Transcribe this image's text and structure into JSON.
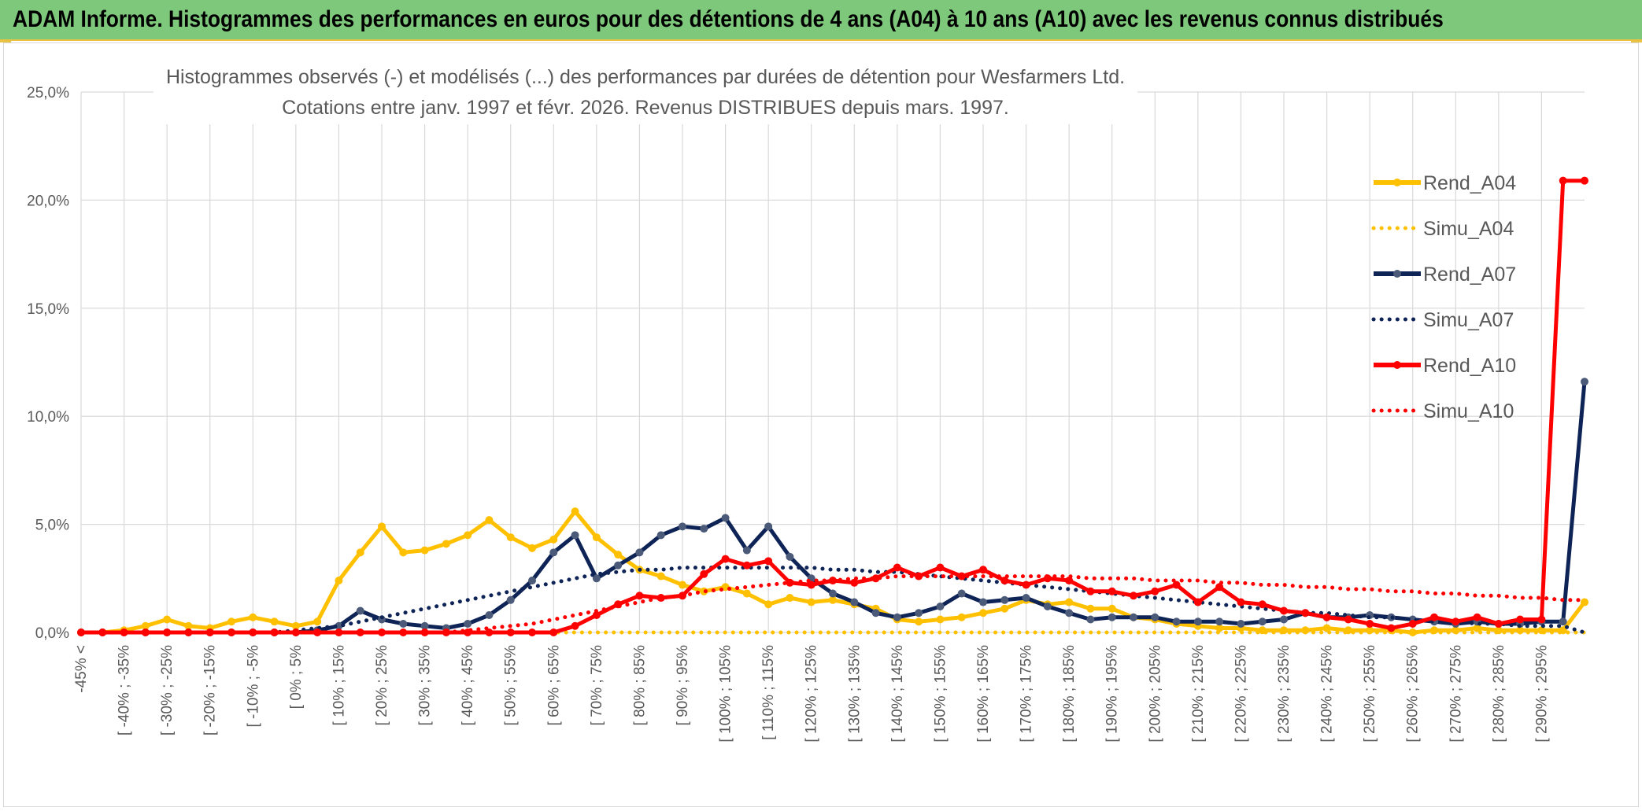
{
  "header": {
    "title": "ADAM Informe. Histogrammes des performances en euros pour des détentions de 4 ans (A04) à 10 ans (A10) avec les revenus connus distribués"
  },
  "colors": {
    "banner": "#7ec87b",
    "accent": "#e8c240",
    "Rend_A04": "#ffc000",
    "Simu_A04": "#ffc000",
    "Rend_A07": "#0e2356",
    "Simu_A07": "#0e2356",
    "Rend_A10": "#ff0000",
    "Simu_A10": "#ff0000"
  },
  "chart_data": {
    "type": "line",
    "title": "Histogrammes observés (-) et modélisés (...) des performances par durées de détention pour Wesfarmers Ltd.",
    "subtitle": "Cotations entre janv. 1997 et févr. 2026. Revenus DISTRIBUES depuis mars. 1997.",
    "xlabel": "",
    "ylabel": "",
    "ylim": [
      0,
      25
    ],
    "y_ticks": [
      "0,0%",
      "5,0%",
      "10,0%",
      "15,0%",
      "20,0%",
      "25,0%"
    ],
    "grid": true,
    "legend_position": "right",
    "categories": [
      "-45% <",
      "[ -45% ; -40%",
      "[ -40% ; -35%",
      "[ -35% ; -30%",
      "[ -30% ; -25%",
      "[ -25% ; -20%",
      "[ -20% ; -15%",
      "[ -15% ; -10%",
      "[ -10% ; -5%",
      "[ -5% ; 0%",
      "[ 0% ; 5%",
      "[ 5% ; 10%",
      "[ 10% ; 15%",
      "[ 15% ; 20%",
      "[ 20% ; 25%",
      "[ 25% ; 30%",
      "[ 30% ; 35%",
      "[ 35% ; 40%",
      "[ 40% ; 45%",
      "[ 45% ; 50%",
      "[ 50% ; 55%",
      "[ 55% ; 60%",
      "[ 60% ; 65%",
      "[ 65% ; 70%",
      "[ 70% ; 75%",
      "[ 75% ; 80%",
      "[ 80% ; 85%",
      "[ 85% ; 90%",
      "[ 90% ; 95%",
      "[ 95% ; 100%",
      "[ 100% ; 105%",
      "[ 105% ; 110%",
      "[ 110% ; 115%",
      "[ 115% ; 120%",
      "[ 120% ; 125%",
      "[ 125% ; 130%",
      "[ 130% ; 135%",
      "[ 135% ; 140%",
      "[ 140% ; 145%",
      "[ 145% ; 150%",
      "[ 150% ; 155%",
      "[ 155% ; 160%",
      "[ 160% ; 165%",
      "[ 165% ; 170%",
      "[ 170% ; 175%",
      "[ 175% ; 180%",
      "[ 180% ; 185%",
      "[ 185% ; 190%",
      "[ 190% ; 195%",
      "[ 195% ; 200%",
      "[ 200% ; 205%",
      "[ 205% ; 210%",
      "[ 210% ; 215%",
      "[ 215% ; 220%",
      "[ 220% ; 225%",
      "[ 225% ; 230%",
      "[ 230% ; 235%",
      "[ 235% ; 240%",
      "[ 240% ; 245%",
      "[ 245% ; 250%",
      "[ 250% ; 255%",
      "[ 255% ; 260%",
      "[ 260% ; 265%",
      "[ 265% ; 270%",
      "[ 270% ; 275%",
      "[ 275% ; 280%",
      "[ 280% ; 285%",
      "[ 285% ; 290%",
      "[ 290% ; 295%",
      "[ 295% ; 300%",
      "> 300%"
    ],
    "x_ticks_shown": [
      "-45% <",
      "[ -40% ; -35%",
      "[ -30% ; -25%",
      "[ -20% ; -15%",
      "[ -10% ; -5%",
      "[ 0% ; 5%",
      "[ 10% ; 15%",
      "[ 20% ; 25%",
      "[ 30% ; 35%",
      "[ 40% ; 45%",
      "[ 50% ; 55%",
      "[ 60% ; 65%",
      "[ 70% ; 75%",
      "[ 80% ; 85%",
      "[ 90% ; 95%",
      "[ 100% ; 105%",
      "[ 110% ; 115%",
      "[ 120% ; 125%",
      "[ 130% ; 135%",
      "[ 140% ; 145%",
      "[ 150% ; 155%",
      "[ 160% ; 165%",
      "[ 170% ; 175%",
      "[ 180% ; 185%",
      "[ 190% ; 195%",
      "[ 200% ; 205%",
      "[ 210% ; 215%",
      "[ 220% ; 225%",
      "[ 230% ; 235%",
      "[ 240% ; 245%",
      "[ 250% ; 255%",
      "[ 260% ; 265%",
      "[ 270% ; 275%",
      "[ 280% ; 285%",
      "[ 290% ; 295%"
    ],
    "series": [
      {
        "name": "Rend_A04",
        "style": "solid",
        "markers": true,
        "values": [
          0,
          0,
          0.1,
          0.3,
          0.6,
          0.3,
          0.2,
          0.5,
          0.7,
          0.5,
          0.3,
          0.5,
          2.4,
          3.7,
          4.9,
          3.7,
          3.8,
          4.1,
          4.5,
          5.2,
          4.4,
          3.9,
          4.3,
          5.6,
          4.4,
          3.6,
          2.9,
          2.6,
          2.2,
          1.9,
          2.1,
          1.8,
          1.3,
          1.6,
          1.4,
          1.5,
          1.3,
          1.1,
          0.6,
          0.5,
          0.6,
          0.7,
          0.9,
          1.1,
          1.5,
          1.3,
          1.4,
          1.1,
          1.1,
          0.7,
          0.6,
          0.4,
          0.3,
          0.2,
          0.2,
          0.1,
          0.1,
          0.1,
          0.2,
          0.1,
          0.1,
          0.1,
          0,
          0.1,
          0.1,
          0.2,
          0.1,
          0.1,
          0.1,
          0.1,
          1.4
        ]
      },
      {
        "name": "Simu_A04",
        "style": "dotted",
        "markers": false,
        "values": [
          0,
          0,
          0,
          0,
          0,
          0,
          0,
          0,
          0,
          0,
          0,
          0,
          0,
          0,
          0,
          0,
          0,
          0,
          0,
          0,
          0,
          0,
          0,
          0,
          0,
          0,
          0,
          0,
          0,
          0,
          0,
          0,
          0,
          0,
          0,
          0,
          0,
          0,
          0,
          0,
          0,
          0,
          0,
          0,
          0,
          0,
          0,
          0,
          0,
          0,
          0,
          0,
          0,
          0,
          0,
          0,
          0,
          0,
          0,
          0,
          0,
          0,
          0,
          0,
          0,
          0,
          0,
          0,
          0,
          0,
          0
        ]
      },
      {
        "name": "Rend_A07",
        "style": "solid",
        "markers": true,
        "values": [
          0,
          0,
          0,
          0,
          0,
          0,
          0,
          0,
          0,
          0,
          0,
          0.1,
          0.3,
          1.0,
          0.6,
          0.4,
          0.3,
          0.2,
          0.4,
          0.8,
          1.5,
          2.4,
          3.7,
          4.5,
          2.5,
          3.1,
          3.7,
          4.5,
          4.9,
          4.8,
          5.3,
          3.8,
          4.9,
          3.5,
          2.5,
          1.8,
          1.4,
          0.9,
          0.7,
          0.9,
          1.2,
          1.8,
          1.4,
          1.5,
          1.6,
          1.2,
          0.9,
          0.6,
          0.7,
          0.7,
          0.7,
          0.5,
          0.5,
          0.5,
          0.4,
          0.5,
          0.6,
          0.9,
          0.7,
          0.7,
          0.8,
          0.7,
          0.6,
          0.5,
          0.4,
          0.5,
          0.4,
          0.4,
          0.5,
          0.5,
          11.6
        ]
      },
      {
        "name": "Simu_A07",
        "style": "dotted",
        "markers": false,
        "values": [
          0,
          0,
          0,
          0,
          0,
          0,
          0,
          0,
          0,
          0,
          0.1,
          0.2,
          0.3,
          0.5,
          0.7,
          0.9,
          1.1,
          1.3,
          1.5,
          1.7,
          1.9,
          2.1,
          2.3,
          2.5,
          2.7,
          2.8,
          2.9,
          2.9,
          3.0,
          3.0,
          3.0,
          3.0,
          3.0,
          3.0,
          3.0,
          2.9,
          2.9,
          2.8,
          2.8,
          2.7,
          2.6,
          2.5,
          2.4,
          2.3,
          2.2,
          2.1,
          2.0,
          1.9,
          1.8,
          1.7,
          1.6,
          1.5,
          1.4,
          1.3,
          1.2,
          1.1,
          1.0,
          0.9,
          0.9,
          0.8,
          0.7,
          0.7,
          0.6,
          0.5,
          0.5,
          0.4,
          0.4,
          0.3,
          0.3,
          0.3,
          0
        ]
      },
      {
        "name": "Rend_A10",
        "style": "solid",
        "markers": true,
        "values": [
          0,
          0,
          0,
          0,
          0,
          0,
          0,
          0,
          0,
          0,
          0,
          0,
          0,
          0,
          0,
          0,
          0,
          0,
          0,
          0,
          0,
          0,
          0,
          0.3,
          0.8,
          1.3,
          1.7,
          1.6,
          1.7,
          2.7,
          3.4,
          3.1,
          3.3,
          2.3,
          2.2,
          2.4,
          2.3,
          2.5,
          3.0,
          2.6,
          3.0,
          2.6,
          2.9,
          2.4,
          2.2,
          2.5,
          2.4,
          1.9,
          1.9,
          1.7,
          1.9,
          2.2,
          1.4,
          2.1,
          1.4,
          1.3,
          1.0,
          0.9,
          0.7,
          0.6,
          0.4,
          0.2,
          0.4,
          0.7,
          0.5,
          0.7,
          0.4,
          0.6,
          0.6,
          20.9,
          20.9
        ]
      },
      {
        "name": "Simu_A10",
        "style": "dotted",
        "markers": false,
        "values": [
          0,
          0,
          0,
          0,
          0,
          0,
          0,
          0,
          0,
          0,
          0,
          0,
          0,
          0,
          0,
          0,
          0,
          0,
          0.1,
          0.2,
          0.3,
          0.4,
          0.6,
          0.8,
          1.0,
          1.2,
          1.4,
          1.6,
          1.7,
          1.9,
          2.0,
          2.1,
          2.2,
          2.3,
          2.4,
          2.4,
          2.5,
          2.5,
          2.6,
          2.6,
          2.6,
          2.6,
          2.6,
          2.6,
          2.6,
          2.6,
          2.6,
          2.5,
          2.5,
          2.5,
          2.4,
          2.4,
          2.4,
          2.3,
          2.3,
          2.2,
          2.2,
          2.1,
          2.1,
          2.0,
          2.0,
          1.9,
          1.9,
          1.8,
          1.8,
          1.7,
          1.7,
          1.6,
          1.6,
          1.5,
          1.5
        ]
      }
    ]
  }
}
